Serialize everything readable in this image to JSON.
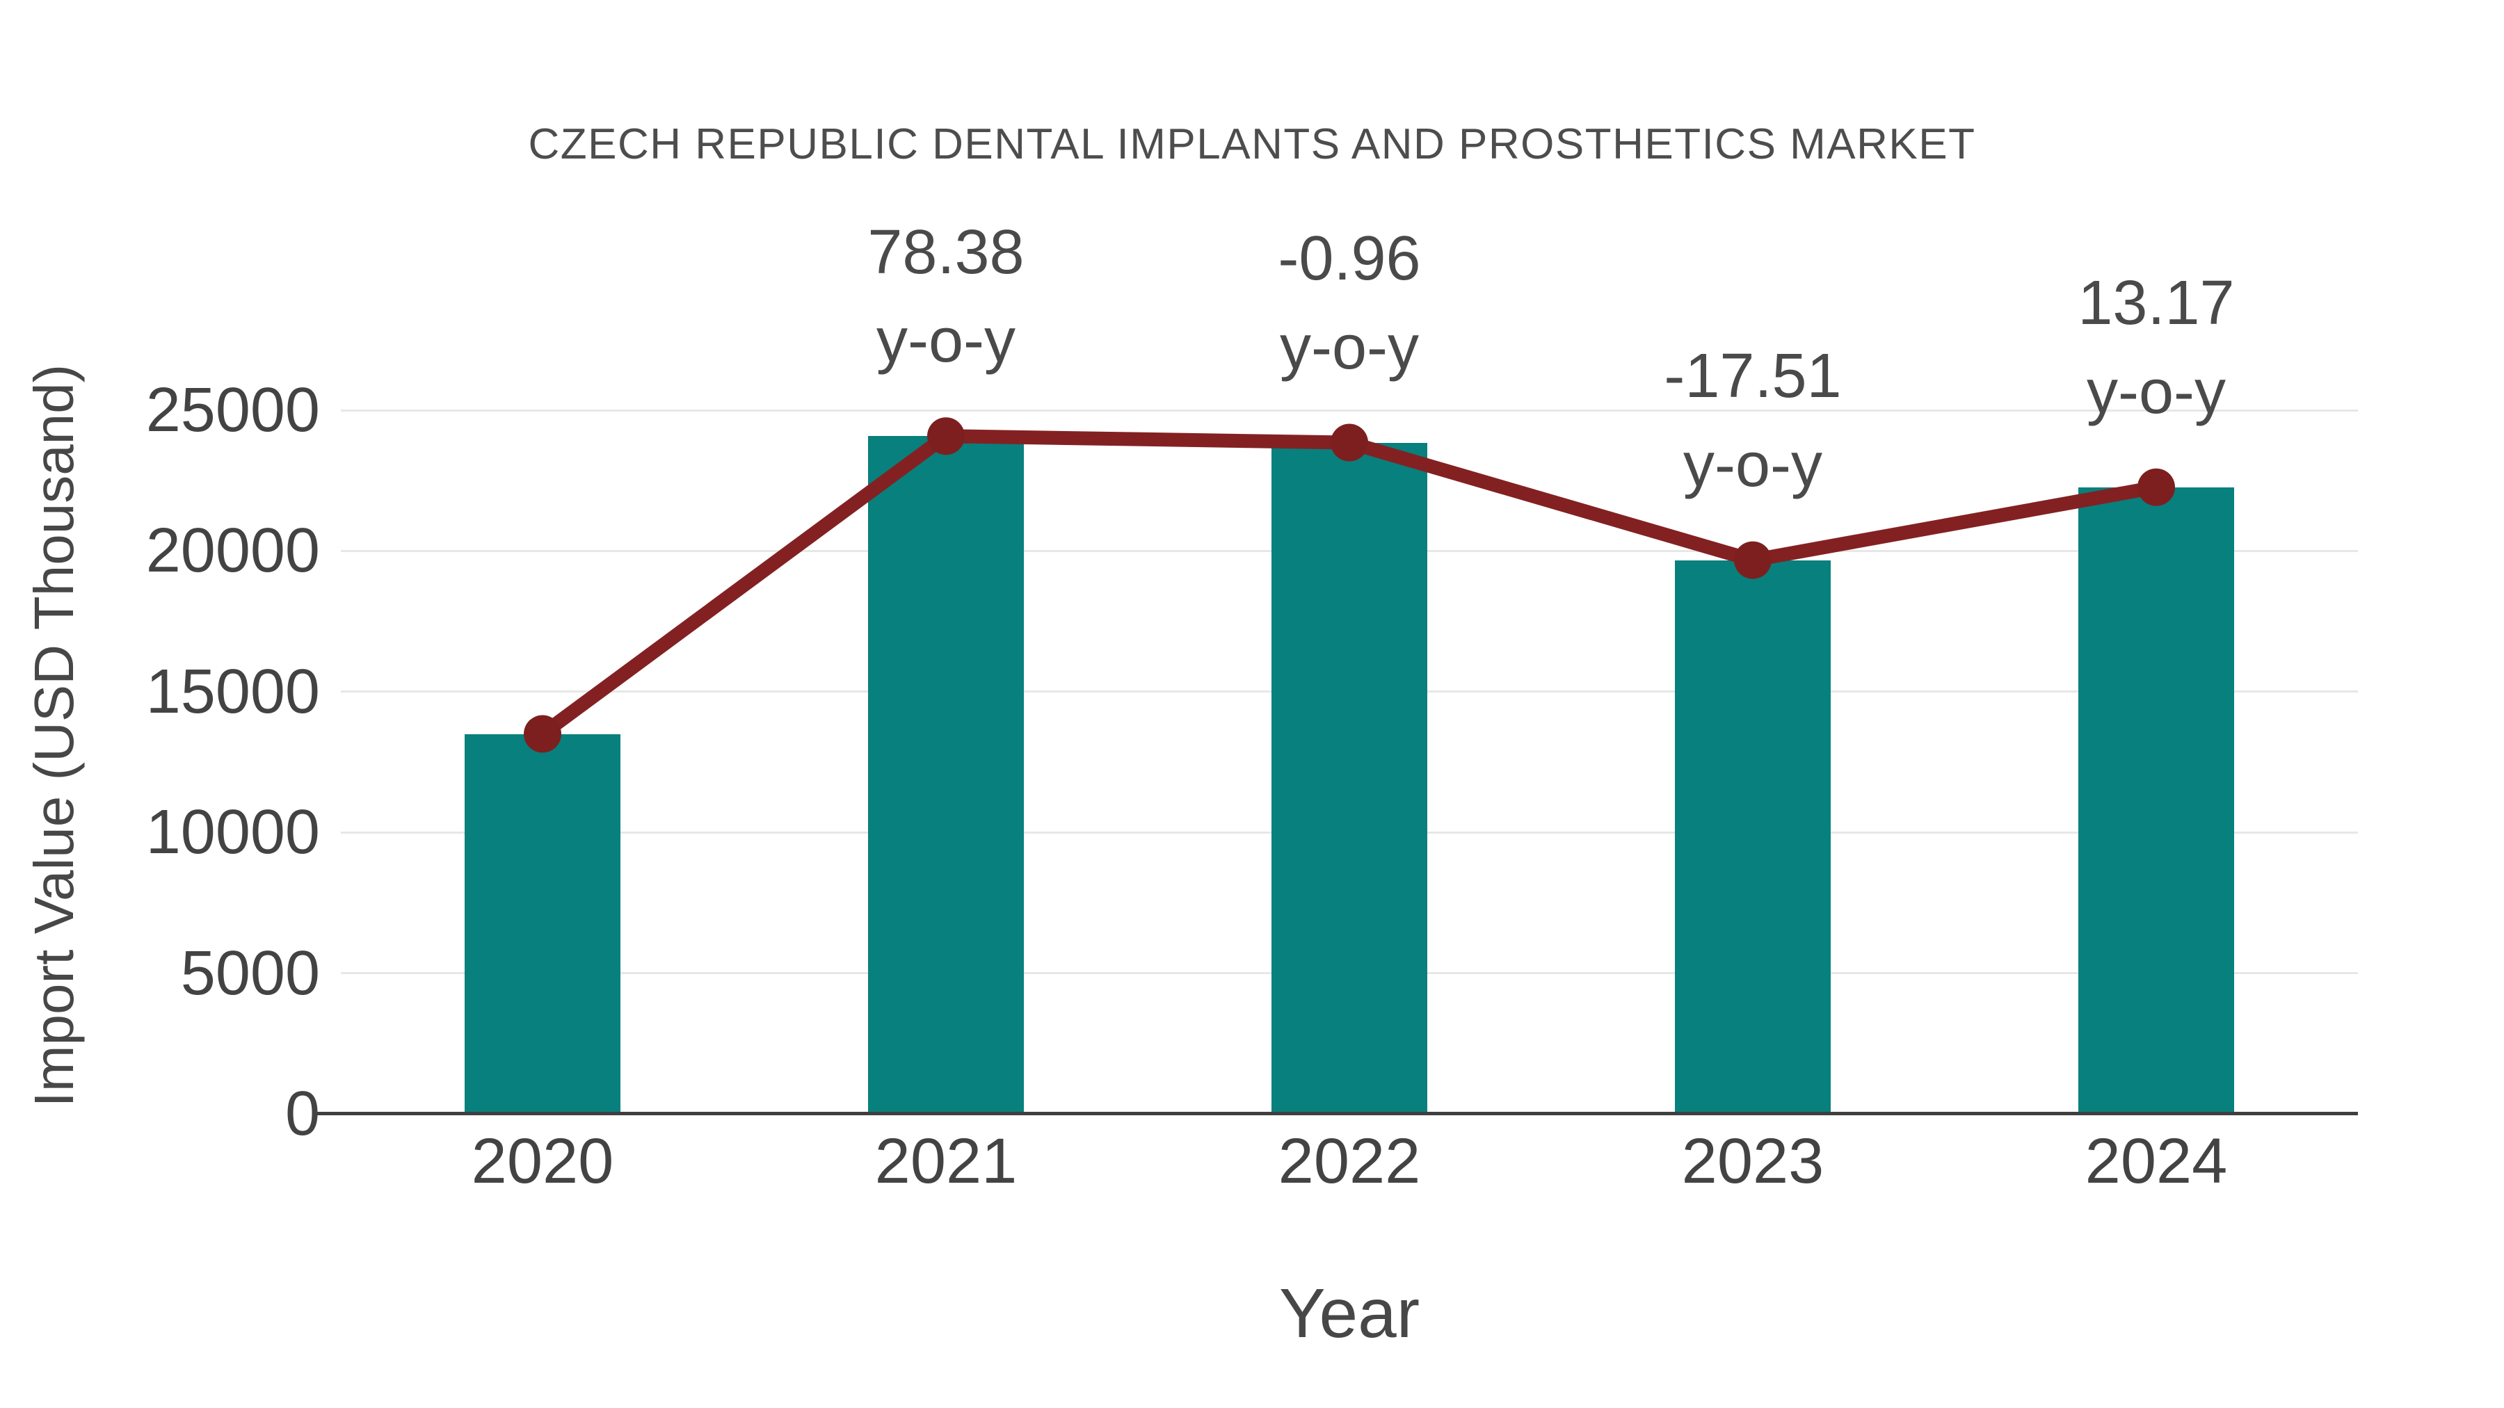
{
  "title": "CZECH REPUBLIC DENTAL IMPLANTS AND PROSTHETICS MARKET",
  "chart_data": {
    "type": "bar",
    "subtype": "bar-with-line-overlay",
    "title": "CZECH REPUBLIC DENTAL IMPLANTS AND PROSTHETICS MARKET",
    "xlabel": "Year",
    "ylabel": "Import Value (USD Thousand)",
    "categories": [
      "2020",
      "2021",
      "2022",
      "2023",
      "2024"
    ],
    "series": [
      {
        "name": "Import Value (USD Thousand)",
        "type": "bar",
        "color": "#08807d",
        "values": [
          13500,
          24081,
          23850,
          19674,
          22265
        ]
      },
      {
        "name": "Import Value trend line",
        "type": "line",
        "color": "#832122",
        "marker": "circle",
        "values": [
          13500,
          24081,
          23850,
          19674,
          22265
        ]
      }
    ],
    "annotations": [
      {
        "category": "2021",
        "value_line": "78.38",
        "sub_line": "y-o-y"
      },
      {
        "category": "2022",
        "value_line": "-0.96",
        "sub_line": "y-o-y"
      },
      {
        "category": "2023",
        "value_line": "-17.51",
        "sub_line": "y-o-y"
      },
      {
        "category": "2024",
        "value_line": "13.17",
        "sub_line": "y-o-y"
      }
    ],
    "ylim": [
      0,
      25000
    ],
    "yticks": [
      0,
      5000,
      10000,
      15000,
      20000,
      25000
    ],
    "grid": "horizontal",
    "legend": "none"
  },
  "colors": {
    "bar": "#08807d",
    "line": "#832122",
    "marker": "#7d1f1f",
    "gridline": "#e7e7e7",
    "axis_line": "#3f3f3f",
    "text": "#4a4a4a",
    "background": "#ffffff"
  }
}
